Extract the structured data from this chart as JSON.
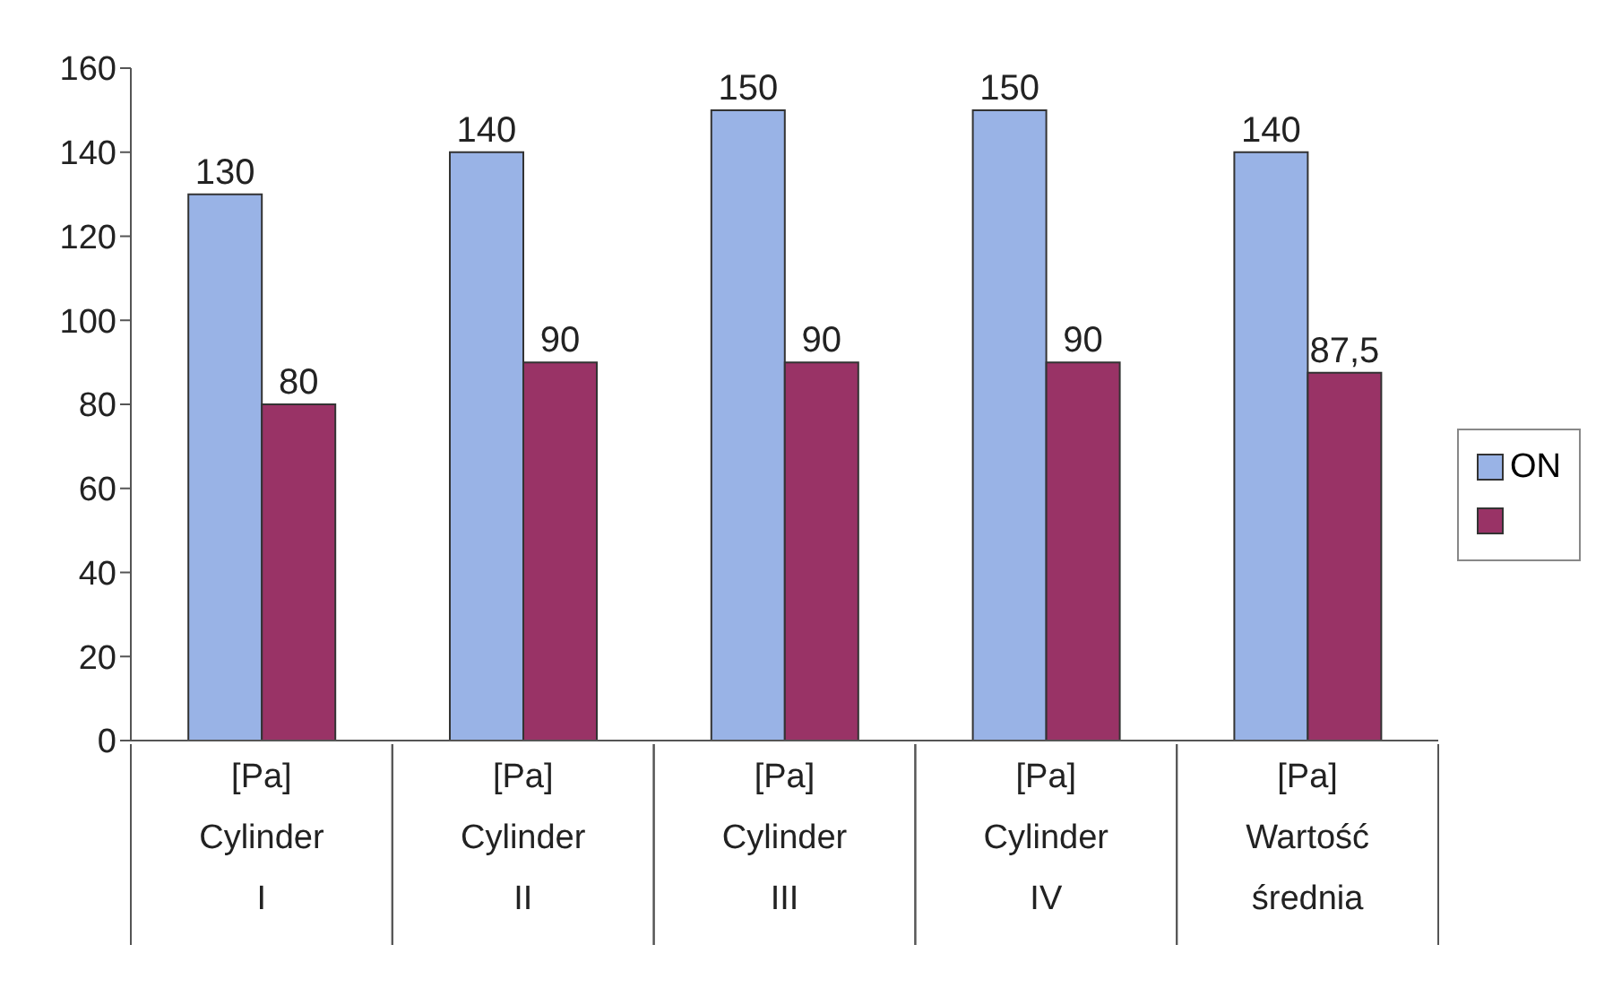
{
  "chart_data": {
    "type": "bar",
    "categories": [
      "[Pa]\nCylinder\nI",
      "[Pa]\nCylinder\nII",
      "[Pa]\nCylinder\nIII",
      "[Pa]\nCylinder\nIV",
      "[Pa]\nWartość\nśrednia"
    ],
    "series": [
      {
        "name": "ON",
        "color": "#99b3e6",
        "values": [
          130,
          140,
          150,
          150,
          140
        ],
        "value_labels": [
          "130",
          "140",
          "150",
          "150",
          "140"
        ]
      },
      {
        "color": "#993366",
        "values": [
          80,
          90,
          90,
          90,
          87.5
        ],
        "value_labels": [
          "80",
          "90",
          "90",
          "90",
          "87,5"
        ]
      }
    ],
    "ylim": [
      0,
      160
    ],
    "yticks": [
      0,
      20,
      40,
      60,
      80,
      100,
      120,
      140,
      160
    ],
    "grid": false,
    "legend": "right"
  }
}
